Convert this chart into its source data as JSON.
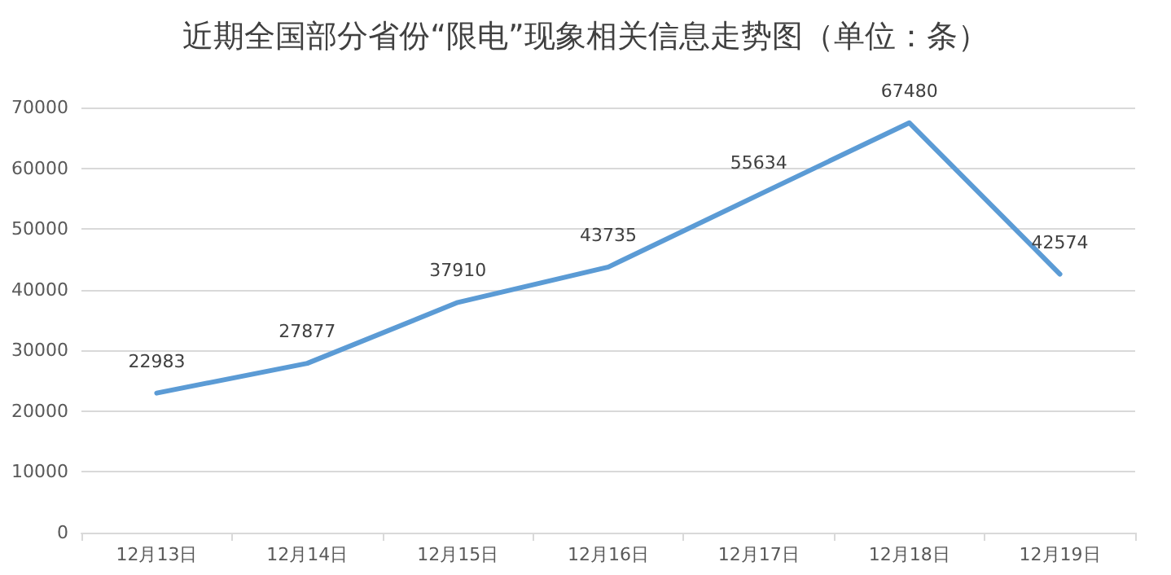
{
  "chart_data": {
    "type": "line",
    "title": "近期全国部分省份“限电”现象相关信息走势图（单位：条）",
    "categories": [
      "12月13日",
      "12月14日",
      "12月15日",
      "12月16日",
      "12月17日",
      "12月18日",
      "12月19日"
    ],
    "series": [
      {
        "color": "#5b9bd5",
        "values": [
          22983,
          27877,
          37910,
          43735,
          55634,
          67480,
          42574
        ]
      }
    ],
    "ylim": [
      0,
      70000
    ],
    "yticks": [
      0,
      10000,
      20000,
      30000,
      40000,
      50000,
      60000,
      70000
    ],
    "grid": "y",
    "data_labels": true,
    "marker": "none",
    "line_style": "solid"
  }
}
